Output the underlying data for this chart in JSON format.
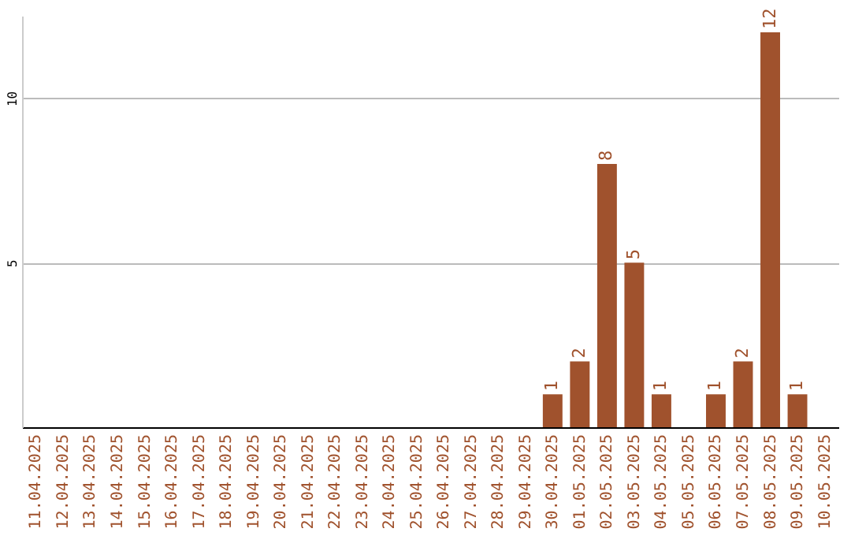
{
  "chart_data": {
    "type": "bar",
    "categories": [
      "11.04.2025",
      "12.04.2025",
      "13.04.2025",
      "14.04.2025",
      "15.04.2025",
      "16.04.2025",
      "17.04.2025",
      "18.04.2025",
      "19.04.2025",
      "20.04.2025",
      "21.04.2025",
      "22.04.2025",
      "23.04.2025",
      "24.04.2025",
      "25.04.2025",
      "26.04.2025",
      "27.04.2025",
      "28.04.2025",
      "29.04.2025",
      "30.04.2025",
      "01.05.2025",
      "02.05.2025",
      "03.05.2025",
      "04.05.2025",
      "05.05.2025",
      "06.05.2025",
      "07.05.2025",
      "08.05.2025",
      "09.05.2025",
      "10.05.2025"
    ],
    "values": [
      0,
      0,
      0,
      0,
      0,
      0,
      0,
      0,
      0,
      0,
      0,
      0,
      0,
      0,
      0,
      0,
      0,
      0,
      0,
      1,
      2,
      8,
      5,
      1,
      0,
      1,
      2,
      12,
      1,
      0
    ],
    "value_labels": [
      null,
      null,
      null,
      null,
      null,
      null,
      null,
      null,
      null,
      null,
      null,
      null,
      null,
      null,
      null,
      null,
      null,
      null,
      null,
      "1",
      "2",
      "8",
      "5",
      "1",
      null,
      "1",
      "2",
      "12",
      "1",
      null
    ],
    "color": "#a0522d",
    "ylim": [
      0,
      12.5
    ],
    "yticks": [
      5,
      10
    ],
    "grid": "y"
  }
}
